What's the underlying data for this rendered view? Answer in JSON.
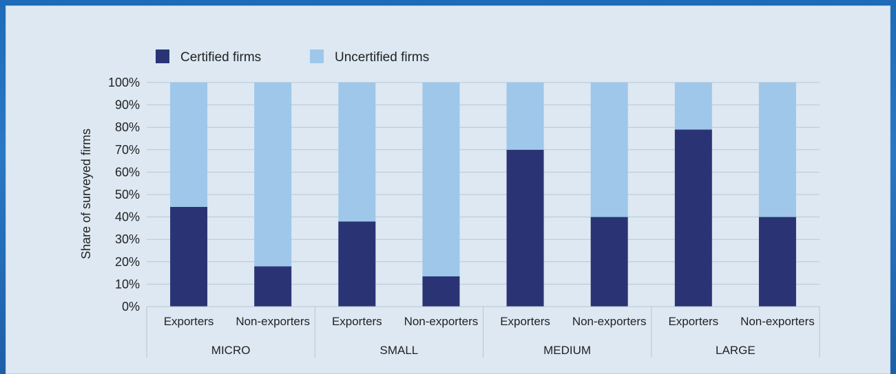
{
  "chart_data": {
    "type": "bar",
    "stacked": true,
    "ylabel": "Share of surveyed firms",
    "ylim": [
      0,
      100
    ],
    "yticks": [
      "0%",
      "10%",
      "20%",
      "30%",
      "40%",
      "50%",
      "60%",
      "70%",
      "80%",
      "90%",
      "100%"
    ],
    "legend_position": "top-left",
    "groups": [
      "MICRO",
      "SMALL",
      "MEDIUM",
      "LARGE"
    ],
    "categories": [
      "Exporters",
      "Non-exporters",
      "Exporters",
      "Non-exporters",
      "Exporters",
      "Non-exporters",
      "Exporters",
      "Non-exporters"
    ],
    "series": [
      {
        "name": "Certified firms",
        "color": "#2a3475",
        "values": [
          44.5,
          18,
          38,
          13.5,
          70,
          40,
          79,
          40
        ]
      },
      {
        "name": "Uncertified firms",
        "color": "#9ec7ea",
        "values": [
          55.5,
          82,
          62,
          86.5,
          30,
          60,
          21,
          60
        ]
      }
    ],
    "grid": true
  }
}
